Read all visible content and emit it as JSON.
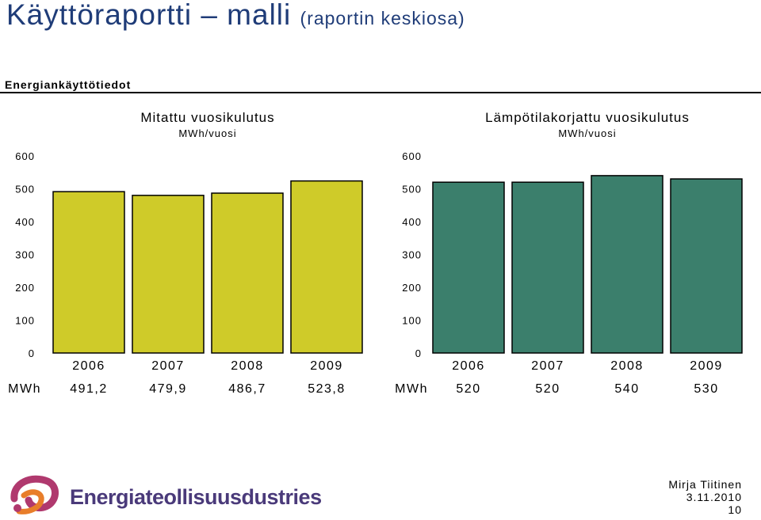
{
  "header": {
    "title": "Käyttöraportti – malli",
    "subtitle": "(raportin keskiosa)",
    "section": "Energiankäyttötiedot"
  },
  "footer": {
    "brand": "Energiateollisuusdustries",
    "author": "Mirja Tiitinen",
    "date": "3.11.2010",
    "page": "10"
  },
  "chart_data": [
    {
      "type": "bar",
      "title": "Mitattu vuosikulutus",
      "unit": "MWh/vuosi",
      "categories": [
        "2006",
        "2007",
        "2008",
        "2009"
      ],
      "values": [
        491.2,
        479.9,
        486.7,
        523.8
      ],
      "value_labels": [
        "491,2",
        "479,9",
        "486,7",
        "523,8"
      ],
      "row_label": "MWh",
      "ylim": [
        0,
        600
      ],
      "yticks": [
        0,
        100,
        200,
        300,
        400,
        500,
        600
      ],
      "color": "#cfcb29",
      "grid": false,
      "legend": "none"
    },
    {
      "type": "bar",
      "title": "Lämpötilakorjattu vuosikulutus",
      "unit": "MWh/vuosi",
      "categories": [
        "2006",
        "2007",
        "2008",
        "2009"
      ],
      "values": [
        520,
        520,
        540,
        530
      ],
      "value_labels": [
        "520",
        "520",
        "540",
        "530"
      ],
      "row_label": "MWh",
      "ylim": [
        0,
        600
      ],
      "yticks": [
        0,
        100,
        200,
        300,
        400,
        500,
        600
      ],
      "color": "#3b7f6c",
      "grid": false,
      "legend": "none"
    }
  ]
}
